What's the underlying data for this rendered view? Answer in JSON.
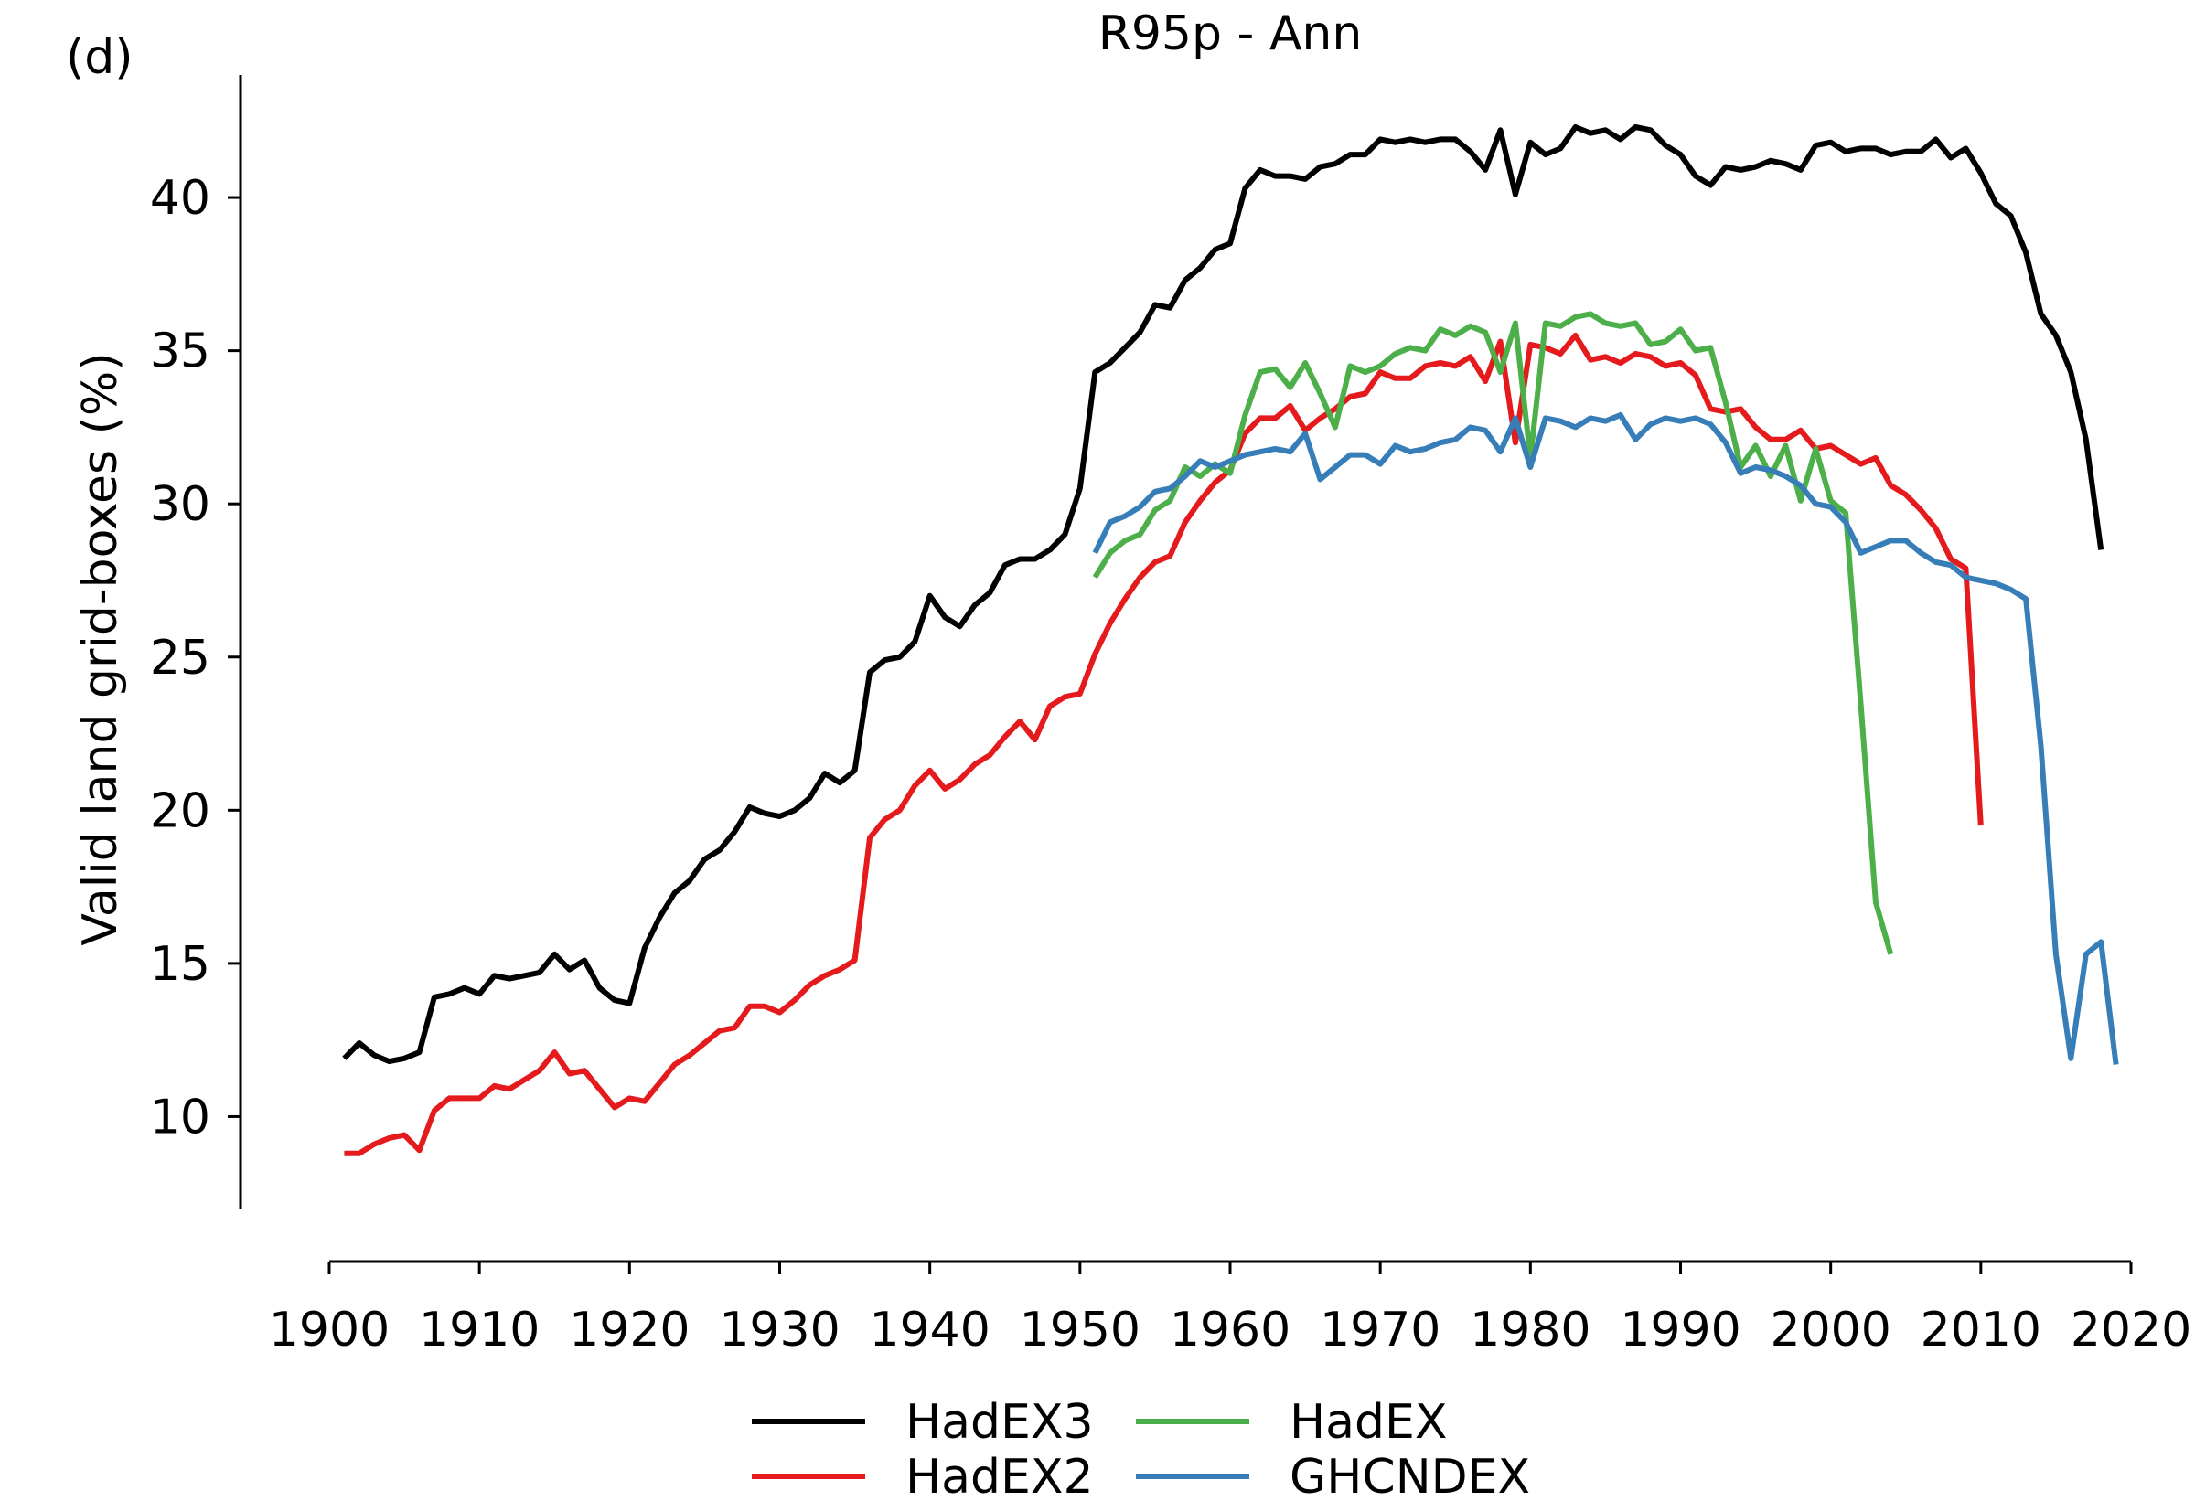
{
  "panel_label": "(d)",
  "chart_data": {
    "type": "line",
    "title": "R95p - Ann",
    "xlabel": "",
    "ylabel": "Valid land grid-boxes (%)",
    "xlim": [
      1900,
      2020
    ],
    "ylim": [
      7,
      44
    ],
    "x_ticks": [
      1900,
      1910,
      1920,
      1930,
      1940,
      1950,
      1960,
      1970,
      1980,
      1990,
      2000,
      2010,
      2020
    ],
    "y_ticks": [
      10,
      15,
      20,
      25,
      30,
      35,
      40
    ],
    "grid": false,
    "legend_position": "bottom-center",
    "series": [
      {
        "name": "HadEX3",
        "color": "#000000",
        "start_year": 1901,
        "values": [
          11.9,
          12.4,
          12.0,
          11.8,
          11.9,
          12.1,
          13.9,
          14.0,
          14.2,
          14.0,
          14.6,
          14.5,
          14.6,
          14.7,
          15.3,
          14.8,
          15.1,
          14.2,
          13.8,
          13.7,
          15.5,
          16.5,
          17.3,
          17.7,
          18.4,
          18.7,
          19.3,
          20.1,
          19.9,
          19.8,
          20.0,
          20.4,
          21.2,
          20.9,
          21.3,
          24.5,
          24.9,
          25.0,
          25.5,
          27.0,
          26.3,
          26.0,
          26.7,
          27.1,
          28.0,
          28.2,
          28.2,
          28.5,
          29.0,
          30.5,
          34.3,
          34.6,
          35.1,
          35.6,
          36.5,
          36.4,
          37.3,
          37.7,
          38.3,
          38.5,
          40.3,
          40.9,
          40.7,
          40.7,
          40.6,
          41.0,
          41.1,
          41.4,
          41.4,
          41.9,
          41.8,
          41.9,
          41.8,
          41.9,
          41.9,
          41.5,
          40.9,
          42.2,
          40.1,
          41.8,
          41.4,
          41.6,
          42.3,
          42.1,
          42.2,
          41.9,
          42.3,
          42.2,
          41.7,
          41.4,
          40.7,
          40.4,
          41.0,
          40.9,
          41.0,
          41.2,
          41.1,
          40.9,
          41.7,
          41.8,
          41.5,
          41.6,
          41.6,
          41.4,
          41.5,
          41.5,
          41.9,
          41.3,
          41.6,
          40.8,
          39.8,
          39.4,
          38.2,
          36.2,
          35.5,
          34.3,
          32.1,
          28.5
        ]
      },
      {
        "name": "HadEX2",
        "color": "#e41a1c",
        "start_year": 1901,
        "values": [
          8.8,
          8.8,
          9.1,
          9.3,
          9.4,
          8.9,
          10.2,
          10.6,
          10.6,
          10.6,
          11.0,
          10.9,
          11.2,
          11.5,
          12.1,
          11.4,
          11.5,
          10.9,
          10.3,
          10.6,
          10.5,
          11.1,
          11.7,
          12.0,
          12.4,
          12.8,
          12.9,
          13.6,
          13.6,
          13.4,
          13.8,
          14.3,
          14.6,
          14.8,
          15.1,
          19.1,
          19.7,
          20.0,
          20.8,
          21.3,
          20.7,
          21.0,
          21.5,
          21.8,
          22.4,
          22.9,
          22.3,
          23.4,
          23.7,
          23.8,
          25.1,
          26.1,
          26.9,
          27.6,
          28.1,
          28.3,
          29.4,
          30.1,
          30.7,
          31.1,
          32.3,
          32.8,
          32.8,
          33.2,
          32.4,
          32.8,
          33.1,
          33.5,
          33.6,
          34.3,
          34.1,
          34.1,
          34.5,
          34.6,
          34.5,
          34.8,
          34.0,
          35.3,
          32.0,
          35.2,
          35.1,
          34.9,
          35.5,
          34.7,
          34.8,
          34.6,
          34.9,
          34.8,
          34.5,
          34.6,
          34.2,
          33.1,
          33.0,
          33.1,
          32.5,
          32.1,
          32.1,
          32.4,
          31.8,
          31.9,
          31.6,
          31.3,
          31.5,
          30.6,
          30.3,
          29.8,
          29.2,
          28.2,
          27.9,
          19.5
        ]
      },
      {
        "name": "HadEX",
        "color": "#4daf4a",
        "start_year": 1951,
        "values": [
          27.6,
          28.4,
          28.8,
          29.0,
          29.8,
          30.1,
          31.2,
          30.9,
          31.3,
          31.0,
          32.9,
          34.3,
          34.4,
          33.8,
          34.6,
          33.6,
          32.5,
          34.5,
          34.3,
          34.5,
          34.9,
          35.1,
          35.0,
          35.7,
          35.5,
          35.8,
          35.6,
          34.3,
          35.9,
          31.5,
          35.9,
          35.8,
          36.1,
          36.2,
          35.9,
          35.8,
          35.9,
          35.2,
          35.3,
          35.7,
          35.0,
          35.1,
          33.3,
          31.2,
          31.9,
          30.9,
          31.9,
          30.1,
          31.8,
          30.1,
          29.7,
          23.5,
          17.0,
          15.3
        ]
      },
      {
        "name": "GHCNDEX",
        "color": "#377eb8",
        "start_year": 1951,
        "values": [
          28.4,
          29.4,
          29.6,
          29.9,
          30.4,
          30.5,
          30.9,
          31.4,
          31.2,
          31.4,
          31.6,
          31.7,
          31.8,
          31.7,
          32.3,
          30.8,
          31.2,
          31.6,
          31.6,
          31.3,
          31.9,
          31.7,
          31.8,
          32.0,
          32.1,
          32.5,
          32.4,
          31.7,
          32.8,
          31.2,
          32.8,
          32.7,
          32.5,
          32.8,
          32.7,
          32.9,
          32.1,
          32.6,
          32.8,
          32.7,
          32.8,
          32.6,
          32.0,
          31.0,
          31.2,
          31.1,
          30.9,
          30.6,
          30.0,
          29.9,
          29.4,
          28.4,
          28.6,
          28.8,
          28.8,
          28.4,
          28.1,
          28.0,
          27.6,
          27.5,
          27.4,
          27.2,
          26.9,
          22.1,
          15.3,
          11.9,
          15.3,
          15.7,
          11.7
        ]
      }
    ]
  }
}
